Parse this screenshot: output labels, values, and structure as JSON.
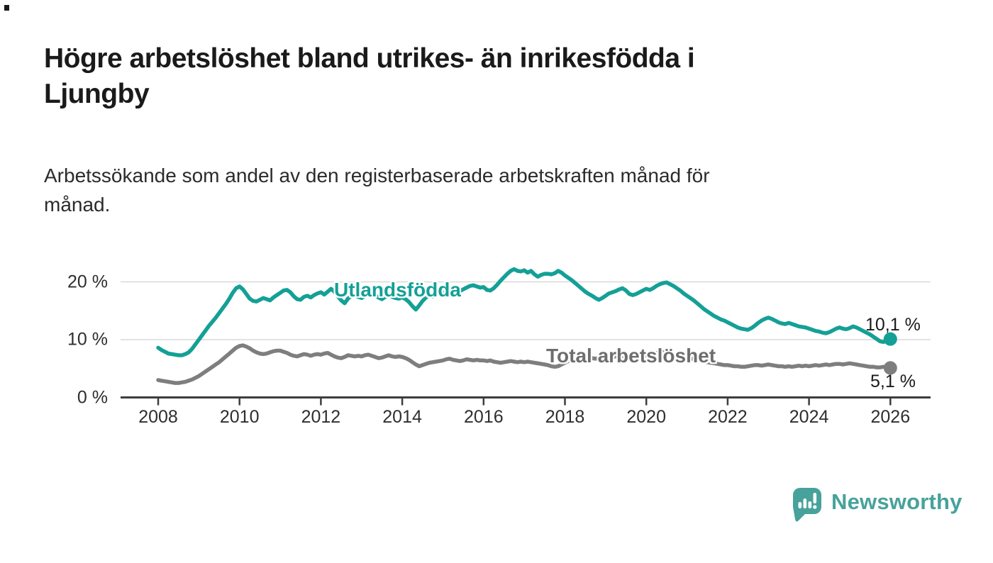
{
  "page": {
    "title": "Högre arbetslöshet bland utrikes- än inrikesfödda i\nLjungby",
    "subtitle": "Arbetssökande som andel av den registerbaserade arbetskraften månad för\nmånad."
  },
  "chart_data": {
    "type": "line",
    "title": "Högre arbetslöshet bland utrikes- än inrikesfödda i Ljungby",
    "subtitle": "Arbetssökande som andel av den registerbaserade arbetskraften månad för månad.",
    "xlabel": "",
    "ylabel": "",
    "grid": "horizontal-only",
    "legend_position": "inline-labels",
    "ylim": [
      0,
      24
    ],
    "y_ticks": [
      0,
      10,
      20
    ],
    "y_tick_labels": [
      "0 %",
      "10 %",
      "20 %"
    ],
    "x_ticks": [
      2008,
      2010,
      2012,
      2014,
      2016,
      2018,
      2020,
      2022,
      2024,
      2026
    ],
    "x_tick_labels": [
      "2008",
      "2010",
      "2012",
      "2014",
      "2016",
      "2018",
      "2020",
      "2022",
      "2024",
      "2026"
    ],
    "x_start_year": 2008,
    "x_step": "monthly",
    "gridline_color": "#d9d9d9",
    "axis_color": "#3d3d3d",
    "series": [
      {
        "name": "utlandsfodda",
        "label": "Utlandsfödda",
        "color": "#14a096",
        "end_label": "10,1 %",
        "end_value": 10.1,
        "values": [
          8.6,
          8.2,
          7.9,
          7.6,
          7.5,
          7.4,
          7.3,
          7.3,
          7.5,
          7.8,
          8.4,
          9.2,
          10.0,
          10.8,
          11.6,
          12.4,
          13.1,
          13.8,
          14.6,
          15.4,
          16.2,
          17.1,
          18.1,
          18.9,
          19.2,
          18.7,
          17.9,
          17.1,
          16.7,
          16.6,
          16.9,
          17.2,
          17.0,
          16.8,
          17.3,
          17.7,
          18.1,
          18.5,
          18.6,
          18.2,
          17.5,
          17.0,
          16.9,
          17.4,
          17.6,
          17.3,
          17.7,
          18.0,
          18.2,
          17.8,
          18.3,
          18.8,
          18.3,
          17.5,
          16.8,
          16.3,
          17.1,
          17.6,
          17.7,
          17.4,
          17.2,
          17.6,
          17.9,
          18.1,
          17.7,
          17.3,
          17.0,
          17.4,
          17.7,
          17.4,
          17.2,
          17.1,
          17.3,
          17.0,
          16.5,
          15.8,
          15.2,
          15.9,
          16.7,
          17.3,
          17.7,
          17.5,
          17.7,
          18.0,
          18.1,
          17.8,
          17.6,
          17.8,
          18.1,
          18.4,
          18.7,
          19.0,
          19.3,
          19.4,
          19.2,
          19.0,
          19.1,
          18.6,
          18.5,
          18.9,
          19.5,
          20.2,
          20.8,
          21.4,
          21.9,
          22.2,
          21.9,
          21.8,
          22.0,
          21.6,
          21.9,
          21.3,
          20.9,
          21.2,
          21.4,
          21.4,
          21.3,
          21.5,
          21.9,
          21.6,
          21.1,
          20.7,
          20.3,
          19.8,
          19.3,
          18.8,
          18.3,
          17.9,
          17.6,
          17.2,
          16.9,
          17.2,
          17.6,
          18.0,
          18.2,
          18.4,
          18.7,
          18.9,
          18.5,
          17.9,
          17.7,
          17.9,
          18.2,
          18.5,
          18.8,
          18.6,
          18.9,
          19.3,
          19.6,
          19.8,
          19.9,
          19.6,
          19.3,
          18.9,
          18.5,
          18.0,
          17.6,
          17.2,
          16.8,
          16.3,
          15.8,
          15.3,
          14.9,
          14.5,
          14.1,
          13.8,
          13.5,
          13.3,
          13.0,
          12.7,
          12.4,
          12.1,
          11.9,
          11.8,
          11.7,
          12.0,
          12.4,
          12.9,
          13.3,
          13.6,
          13.8,
          13.6,
          13.3,
          13.0,
          12.8,
          12.7,
          12.9,
          12.7,
          12.5,
          12.3,
          12.2,
          12.1,
          11.9,
          11.7,
          11.5,
          11.4,
          11.2,
          11.1,
          11.3,
          11.6,
          11.9,
          12.1,
          11.9,
          11.8,
          12.0,
          12.3,
          12.1,
          11.8,
          11.5,
          11.2,
          10.9,
          10.5,
          10.1,
          9.7,
          9.6,
          9.9,
          10.1
        ]
      },
      {
        "name": "total-arbetsloshet",
        "label": "Total arbetslöshet",
        "color": "#7e7e7e",
        "label_color": "#6e6e6e",
        "end_label": "5,1 %",
        "end_value": 5.1,
        "values": [
          3.0,
          2.9,
          2.8,
          2.7,
          2.6,
          2.5,
          2.5,
          2.6,
          2.7,
          2.9,
          3.1,
          3.4,
          3.7,
          4.1,
          4.5,
          4.9,
          5.3,
          5.7,
          6.1,
          6.6,
          7.1,
          7.6,
          8.1,
          8.6,
          8.9,
          9.0,
          8.8,
          8.5,
          8.1,
          7.8,
          7.6,
          7.5,
          7.6,
          7.8,
          8.0,
          8.1,
          8.1,
          7.9,
          7.7,
          7.4,
          7.2,
          7.1,
          7.3,
          7.5,
          7.4,
          7.2,
          7.4,
          7.5,
          7.4,
          7.6,
          7.7,
          7.4,
          7.1,
          6.9,
          6.8,
          7.0,
          7.3,
          7.2,
          7.1,
          7.2,
          7.1,
          7.3,
          7.4,
          7.2,
          7.0,
          6.8,
          6.9,
          7.1,
          7.3,
          7.1,
          7.0,
          7.1,
          7.0,
          6.8,
          6.5,
          6.1,
          5.7,
          5.4,
          5.6,
          5.8,
          6.0,
          6.1,
          6.2,
          6.3,
          6.4,
          6.6,
          6.7,
          6.5,
          6.4,
          6.3,
          6.4,
          6.6,
          6.5,
          6.4,
          6.5,
          6.4,
          6.4,
          6.3,
          6.4,
          6.2,
          6.1,
          6.0,
          6.1,
          6.2,
          6.3,
          6.2,
          6.1,
          6.2,
          6.1,
          6.2,
          6.1,
          6.0,
          5.9,
          5.8,
          5.7,
          5.6,
          5.4,
          5.3,
          5.4,
          5.7,
          6.0,
          6.3,
          6.4,
          6.5,
          6.4,
          6.5,
          6.6,
          6.7,
          6.8,
          6.7,
          6.8,
          6.9,
          7.0,
          6.9,
          7.0,
          7.1,
          7.0,
          7.1,
          7.2,
          7.1,
          7.0,
          7.1,
          7.2,
          7.2,
          7.2,
          7.3,
          7.5,
          7.7,
          7.8,
          7.8,
          7.7,
          7.6,
          7.5,
          7.3,
          7.1,
          7.0,
          6.9,
          6.8,
          6.6,
          6.5,
          6.4,
          6.2,
          6.1,
          6.0,
          5.9,
          5.8,
          5.7,
          5.6,
          5.6,
          5.5,
          5.4,
          5.4,
          5.3,
          5.3,
          5.4,
          5.5,
          5.6,
          5.6,
          5.5,
          5.6,
          5.7,
          5.6,
          5.5,
          5.4,
          5.4,
          5.3,
          5.4,
          5.3,
          5.4,
          5.5,
          5.4,
          5.5,
          5.4,
          5.5,
          5.6,
          5.5,
          5.6,
          5.7,
          5.6,
          5.7,
          5.8,
          5.8,
          5.7,
          5.8,
          5.9,
          5.8,
          5.7,
          5.6,
          5.5,
          5.4,
          5.3,
          5.3,
          5.2,
          5.2,
          5.3,
          5.3,
          5.1
        ]
      }
    ]
  },
  "footer": {
    "brand": "Newsworthy",
    "brand_color": "#47a29b",
    "logo_icon": "newsworthy-speech-bubble-bar-chart-icon"
  }
}
